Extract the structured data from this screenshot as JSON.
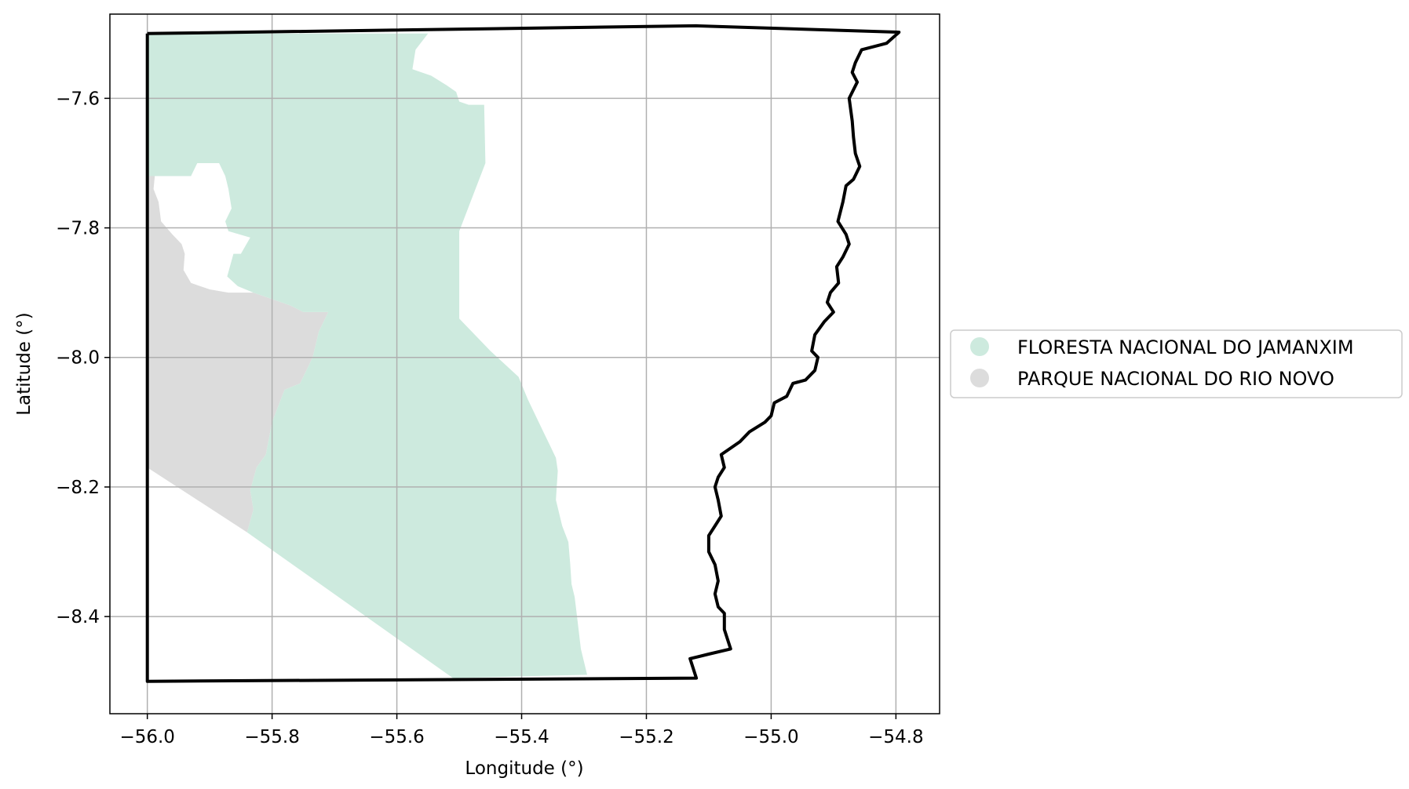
{
  "axes": {
    "xlabel": "Longitude (°)",
    "ylabel": "Latitude (°)",
    "xlim": [
      -56.06,
      -54.73
    ],
    "ylim": [
      -8.55,
      -7.47
    ],
    "xticks": [
      -56.0,
      -55.8,
      -55.6,
      -55.4,
      -55.2,
      -55.0,
      -54.8
    ],
    "yticks": [
      -7.6,
      -7.8,
      -8.0,
      -8.2,
      -8.4
    ],
    "xtick_labels": [
      "−56.0",
      "−55.8",
      "−55.6",
      "−55.4",
      "−55.2",
      "−55.0",
      "−54.8"
    ],
    "ytick_labels": [
      "−7.6",
      "−7.8",
      "−8.0",
      "−8.2",
      "−8.4"
    ],
    "grid": true
  },
  "legend": {
    "placement": "right",
    "items": [
      {
        "label": "FLORESTA NACIONAL DO JAMANXIM",
        "color": "#cdeade"
      },
      {
        "label": "PARQUE NACIONAL DO RIO NOVO",
        "color": "#dcdcdc"
      }
    ]
  },
  "layers": {
    "floresta": {
      "name": "FLORESTA NACIONAL DO JAMANXIM",
      "color": "#cdeade",
      "coords": [
        [
          -56.0,
          -7.5
        ],
        [
          -55.55,
          -7.5
        ],
        [
          -55.57,
          -7.525
        ],
        [
          -55.575,
          -7.555
        ],
        [
          -55.545,
          -7.565
        ],
        [
          -55.52,
          -7.58
        ],
        [
          -55.505,
          -7.59
        ],
        [
          -55.5,
          -7.605
        ],
        [
          -55.485,
          -7.61
        ],
        [
          -55.46,
          -7.61
        ],
        [
          -55.458,
          -7.7
        ],
        [
          -55.5,
          -7.805
        ],
        [
          -55.5,
          -7.94
        ],
        [
          -55.45,
          -7.99
        ],
        [
          -55.405,
          -8.03
        ],
        [
          -55.39,
          -8.065
        ],
        [
          -55.365,
          -8.115
        ],
        [
          -55.355,
          -8.135
        ],
        [
          -55.345,
          -8.155
        ],
        [
          -55.342,
          -8.175
        ],
        [
          -55.345,
          -8.22
        ],
        [
          -55.34,
          -8.24
        ],
        [
          -55.335,
          -8.26
        ],
        [
          -55.325,
          -8.285
        ],
        [
          -55.322,
          -8.32
        ],
        [
          -55.32,
          -8.35
        ],
        [
          -55.315,
          -8.37
        ],
        [
          -55.31,
          -8.41
        ],
        [
          -55.305,
          -8.45
        ],
        [
          -55.295,
          -8.49
        ],
        [
          -55.51,
          -8.495
        ],
        [
          -55.84,
          -8.27
        ],
        [
          -55.83,
          -8.235
        ],
        [
          -55.835,
          -8.205
        ],
        [
          -55.825,
          -8.17
        ],
        [
          -55.81,
          -8.15
        ],
        [
          -55.8,
          -8.1
        ],
        [
          -55.78,
          -8.05
        ],
        [
          -55.755,
          -8.04
        ],
        [
          -55.735,
          -8.0
        ],
        [
          -55.725,
          -7.96
        ],
        [
          -55.71,
          -7.93
        ],
        [
          -55.75,
          -7.93
        ],
        [
          -55.77,
          -7.92
        ],
        [
          -55.8,
          -7.91
        ],
        [
          -55.83,
          -7.9
        ],
        [
          -55.855,
          -7.89
        ],
        [
          -55.872,
          -7.875
        ],
        [
          -55.862,
          -7.84
        ],
        [
          -55.85,
          -7.84
        ],
        [
          -55.835,
          -7.815
        ],
        [
          -55.87,
          -7.805
        ],
        [
          -55.875,
          -7.79
        ],
        [
          -55.865,
          -7.77
        ],
        [
          -55.87,
          -7.74
        ],
        [
          -55.875,
          -7.72
        ],
        [
          -55.885,
          -7.7
        ],
        [
          -55.92,
          -7.7
        ],
        [
          -55.93,
          -7.72
        ],
        [
          -56.0,
          -7.72
        ]
      ]
    },
    "parque": {
      "name": "PARQUE NACIONAL DO RIO NOVO",
      "color": "#dcdcdc",
      "coords": [
        [
          -56.0,
          -7.72
        ],
        [
          -55.988,
          -7.72
        ],
        [
          -55.99,
          -7.74
        ],
        [
          -55.982,
          -7.76
        ],
        [
          -55.978,
          -7.79
        ],
        [
          -55.96,
          -7.81
        ],
        [
          -55.945,
          -7.825
        ],
        [
          -55.94,
          -7.84
        ],
        [
          -55.942,
          -7.865
        ],
        [
          -55.93,
          -7.885
        ],
        [
          -55.9,
          -7.895
        ],
        [
          -55.87,
          -7.9
        ],
        [
          -55.83,
          -7.9
        ],
        [
          -55.8,
          -7.91
        ],
        [
          -55.77,
          -7.92
        ],
        [
          -55.75,
          -7.93
        ],
        [
          -55.71,
          -7.93
        ],
        [
          -55.725,
          -7.96
        ],
        [
          -55.735,
          -8.0
        ],
        [
          -55.755,
          -8.04
        ],
        [
          -55.78,
          -8.05
        ],
        [
          -55.8,
          -8.1
        ],
        [
          -55.81,
          -8.15
        ],
        [
          -55.825,
          -8.17
        ],
        [
          -55.835,
          -8.205
        ],
        [
          -55.83,
          -8.235
        ],
        [
          -55.84,
          -8.27
        ],
        [
          -56.0,
          -8.17
        ]
      ]
    },
    "boundary": {
      "name": "boundary",
      "color": "#000000",
      "coords": [
        [
          -56.0,
          -7.5
        ],
        [
          -55.12,
          -7.488
        ],
        [
          -54.795,
          -7.498
        ],
        [
          -54.815,
          -7.515
        ],
        [
          -54.835,
          -7.52
        ],
        [
          -54.855,
          -7.525
        ],
        [
          -54.865,
          -7.545
        ],
        [
          -54.87,
          -7.56
        ],
        [
          -54.862,
          -7.575
        ],
        [
          -54.875,
          -7.6
        ],
        [
          -54.87,
          -7.635
        ],
        [
          -54.868,
          -7.66
        ],
        [
          -54.865,
          -7.685
        ],
        [
          -54.858,
          -7.705
        ],
        [
          -54.868,
          -7.725
        ],
        [
          -54.88,
          -7.735
        ],
        [
          -54.885,
          -7.76
        ],
        [
          -54.893,
          -7.79
        ],
        [
          -54.88,
          -7.81
        ],
        [
          -54.875,
          -7.825
        ],
        [
          -54.885,
          -7.845
        ],
        [
          -54.895,
          -7.86
        ],
        [
          -54.892,
          -7.885
        ],
        [
          -54.905,
          -7.9
        ],
        [
          -54.91,
          -7.915
        ],
        [
          -54.9,
          -7.93
        ],
        [
          -54.915,
          -7.945
        ],
        [
          -54.93,
          -7.965
        ],
        [
          -54.935,
          -7.99
        ],
        [
          -54.925,
          -8.0
        ],
        [
          -54.93,
          -8.02
        ],
        [
          -54.945,
          -8.035
        ],
        [
          -54.965,
          -8.04
        ],
        [
          -54.975,
          -8.06
        ],
        [
          -54.995,
          -8.07
        ],
        [
          -55.0,
          -8.09
        ],
        [
          -55.01,
          -8.1
        ],
        [
          -55.035,
          -8.115
        ],
        [
          -55.05,
          -8.13
        ],
        [
          -55.065,
          -8.14
        ],
        [
          -55.08,
          -8.15
        ],
        [
          -55.075,
          -8.17
        ],
        [
          -55.085,
          -8.185
        ],
        [
          -55.09,
          -8.2
        ],
        [
          -55.085,
          -8.22
        ],
        [
          -55.08,
          -8.245
        ],
        [
          -55.09,
          -8.26
        ],
        [
          -55.1,
          -8.275
        ],
        [
          -55.1,
          -8.3
        ],
        [
          -55.09,
          -8.32
        ],
        [
          -55.085,
          -8.345
        ],
        [
          -55.09,
          -8.365
        ],
        [
          -55.085,
          -8.385
        ],
        [
          -55.075,
          -8.395
        ],
        [
          -55.075,
          -8.42
        ],
        [
          -55.07,
          -8.435
        ],
        [
          -55.065,
          -8.45
        ],
        [
          -55.1,
          -8.458
        ],
        [
          -55.13,
          -8.465
        ],
        [
          -55.12,
          -8.495
        ],
        [
          -56.0,
          -8.5
        ],
        [
          -56.0,
          -7.5
        ]
      ]
    }
  }
}
